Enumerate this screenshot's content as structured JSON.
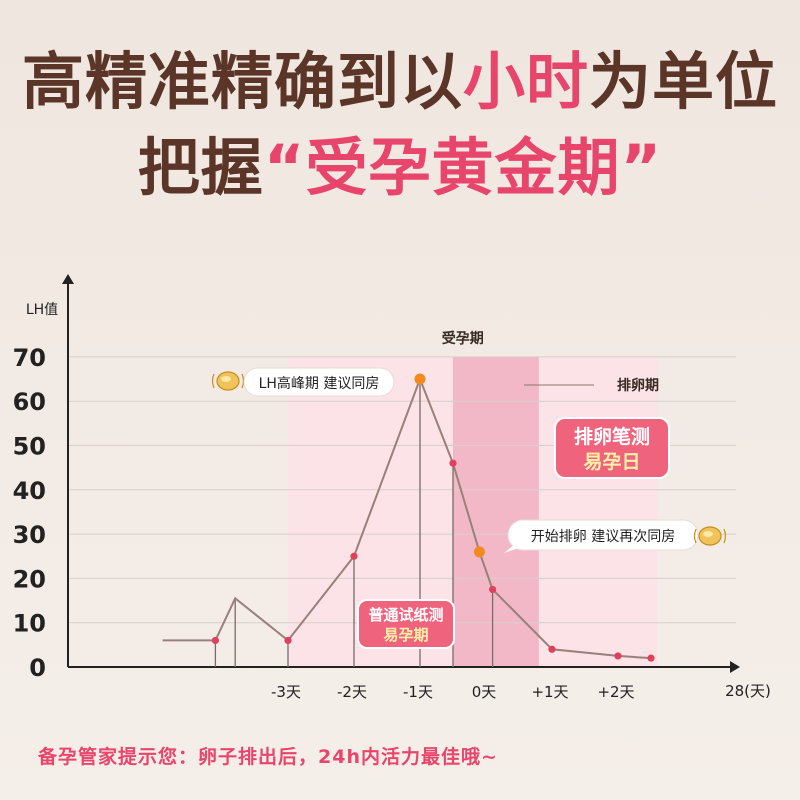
{
  "headline": {
    "line1_before": "高精准精确到以",
    "line1_highlight": "小时",
    "line1_after": "为单位",
    "line2_before": "把握",
    "line2_quote_open": "“",
    "line2_highlight": "受孕黄金期",
    "line2_quote_close": "”"
  },
  "colors": {
    "headline_brown": "#5b3628",
    "accent_pink": "#e8456c",
    "fertile_band": "#fbe3e8",
    "ovulation_band": "#f2b8c7",
    "line": "#9a7f7b",
    "point_red": "#e0405c",
    "point_orange": "#f28a1e"
  },
  "chart_data": {
    "type": "line",
    "ylabel": "LH值",
    "ylim": [
      0,
      70
    ],
    "yticks": [
      0,
      10,
      20,
      30,
      40,
      50,
      60,
      70
    ],
    "x_unit_label": "28(天)",
    "xticks": [
      {
        "label": "-3天",
        "x": -3
      },
      {
        "label": "-2天",
        "x": -2
      },
      {
        "label": "-1天",
        "x": -1
      },
      {
        "label": "0天",
        "x": 0
      },
      {
        "label": "+1天",
        "x": 1
      },
      {
        "label": "+2天",
        "x": 2
      }
    ],
    "series": [
      {
        "points": [
          {
            "x": -4.9,
            "y": 6,
            "marker": "none"
          },
          {
            "x": -4.1,
            "y": 6,
            "marker": "red"
          },
          {
            "x": -3.8,
            "y": 15.5,
            "marker": "none"
          },
          {
            "x": -3.0,
            "y": 6,
            "marker": "red"
          },
          {
            "x": -2.0,
            "y": 25,
            "marker": "red"
          },
          {
            "x": -1.0,
            "y": 65,
            "marker": "orange"
          },
          {
            "x": -0.5,
            "y": 46,
            "marker": "red"
          },
          {
            "x": -0.1,
            "y": 26,
            "marker": "orange"
          },
          {
            "x": 0.1,
            "y": 17.5,
            "marker": "red"
          },
          {
            "x": 1.0,
            "y": 4,
            "marker": "red"
          },
          {
            "x": 2.0,
            "y": 2.5,
            "marker": "red"
          },
          {
            "x": 2.5,
            "y": 2,
            "marker": "red"
          }
        ]
      }
    ],
    "bands": [
      {
        "label": "受孕期",
        "from": -3,
        "to": 2.6,
        "role": "fertile"
      },
      {
        "label": "排卵期",
        "from": -0.5,
        "to": 0.8,
        "role": "ovulation"
      }
    ],
    "annotations": {
      "peak_note": "LH高峰期 建议同房",
      "ovulation_note": "开始排卵 建议再次同房",
      "badge_pen_line1": "排卵笔测",
      "badge_pen_line2": "易孕日",
      "badge_strip_line1": "普通试纸测",
      "badge_strip_line2": "易孕期"
    }
  },
  "footer": "备孕管家提示您：卵子排出后，24h内活力最佳哦~"
}
